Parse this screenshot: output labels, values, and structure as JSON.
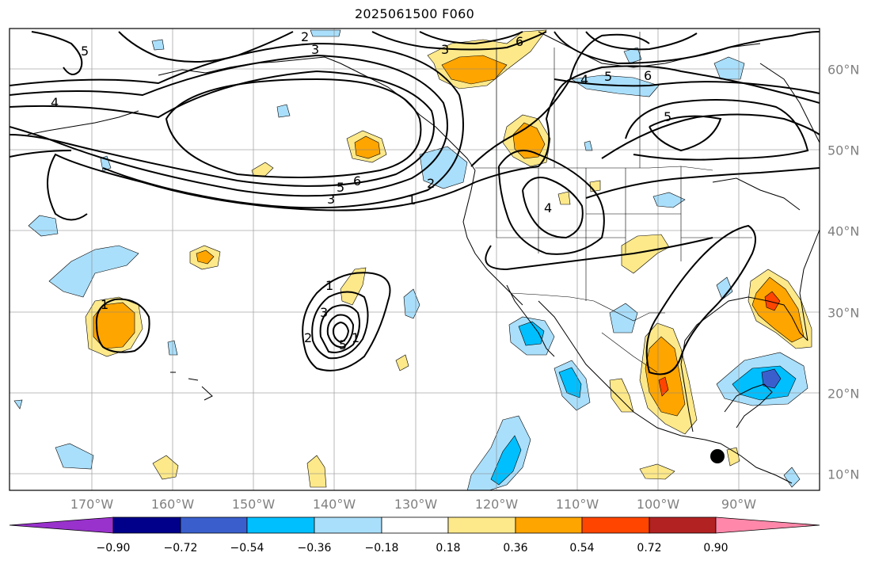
{
  "title": "2025061500 F060",
  "longitude_labels": [
    "170°W",
    "160°W",
    "150°W",
    "140°W",
    "130°W",
    "120°W",
    "110°W",
    "100°W",
    "90°W"
  ],
  "latitude_labels": [
    "60°N",
    "50°N",
    "40°N",
    "30°N",
    "20°N",
    "10°N"
  ],
  "colorbar": {
    "ticks": [
      "−0.90",
      "−0.72",
      "−0.54",
      "−0.36",
      "−0.18",
      "0.18",
      "0.36",
      "0.54",
      "0.72",
      "0.90"
    ],
    "colors": [
      "#9932cc",
      "#00008b",
      "#3a5fcd",
      "#00bfff",
      "#aadffb",
      "#ffffff",
      "#fde98a",
      "#ffa500",
      "#ff4500",
      "#b22222",
      "#ff88aa"
    ]
  },
  "contour_labels": [
    "2",
    "3",
    "3",
    "4",
    "5",
    "6",
    "3",
    "5",
    "6",
    "1",
    "2",
    "4",
    "5",
    "6",
    "5",
    "1",
    "1",
    "2",
    "3",
    "4",
    "5",
    "1"
  ],
  "marker": "storm-center-dot"
}
